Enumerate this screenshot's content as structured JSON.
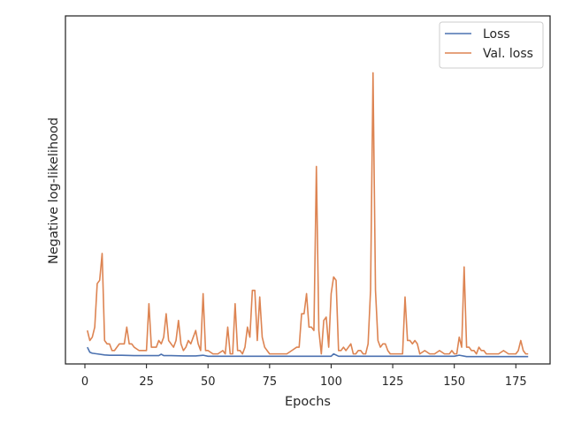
{
  "chart_data": {
    "type": "line",
    "title": "",
    "xlabel": "Epochs",
    "ylabel": "Negative log-likelihood",
    "xlim": [
      -7.9,
      188.9
    ],
    "ylim": [
      -0.02,
      1.02
    ],
    "x_ticks": [
      0,
      25,
      50,
      75,
      100,
      125,
      150,
      175
    ],
    "y_ticks_visible": false,
    "grid": false,
    "legend_position": "top-right",
    "series": [
      {
        "name": "Loss",
        "color": "#4c72b0",
        "x": [
          1,
          2,
          3,
          5,
          8,
          10,
          15,
          20,
          25,
          30,
          31,
          32,
          35,
          40,
          45,
          48,
          50,
          55,
          60,
          65,
          70,
          75,
          80,
          85,
          90,
          95,
          100,
          101,
          103,
          110,
          115,
          120,
          125,
          130,
          135,
          140,
          145,
          150,
          152,
          155,
          160,
          165,
          170,
          175,
          180
        ],
        "y": [
          0.03,
          0.015,
          0.012,
          0.01,
          0.007,
          0.006,
          0.006,
          0.005,
          0.005,
          0.005,
          0.009,
          0.005,
          0.005,
          0.004,
          0.004,
          0.006,
          0.003,
          0.003,
          0.003,
          0.003,
          0.003,
          0.003,
          0.003,
          0.003,
          0.003,
          0.003,
          0.003,
          0.01,
          0.003,
          0.003,
          0.003,
          0.003,
          0.003,
          0.003,
          0.003,
          0.003,
          0.003,
          0.003,
          0.006,
          0.002,
          0.002,
          0.002,
          0.002,
          0.002,
          0.002
        ]
      },
      {
        "name": "Val. loss",
        "color": "#dd8452",
        "x": [
          1,
          2,
          3,
          4,
          5,
          6,
          7,
          8,
          9,
          10,
          11,
          12,
          14,
          16,
          17,
          18,
          19,
          20,
          22,
          24,
          25,
          26,
          27,
          28,
          29,
          30,
          31,
          32,
          33,
          34,
          36,
          37,
          38,
          39,
          40,
          41,
          42,
          43,
          44,
          45,
          46,
          47,
          48,
          49,
          50,
          52,
          54,
          56,
          57,
          58,
          59,
          60,
          61,
          62,
          63,
          64,
          65,
          66,
          67,
          68,
          69,
          70,
          71,
          72,
          73,
          74,
          75,
          76,
          78,
          80,
          82,
          84,
          86,
          87,
          88,
          89,
          90,
          91,
          92,
          93,
          94,
          95,
          96,
          97,
          98,
          99,
          100,
          101,
          102,
          103,
          104,
          105,
          106,
          107,
          108,
          109,
          110,
          111,
          112,
          113,
          114,
          115,
          116,
          117,
          118,
          119,
          120,
          121,
          122,
          123,
          124,
          126,
          128,
          129,
          130,
          131,
          132,
          133,
          134,
          135,
          136,
          138,
          140,
          142,
          144,
          146,
          148,
          149,
          150,
          151,
          152,
          153,
          154,
          155,
          156,
          157,
          158,
          159,
          160,
          161,
          162,
          163,
          164,
          165,
          166,
          168,
          170,
          172,
          174,
          175,
          176,
          177,
          178,
          179,
          180
        ],
        "y": [
          0.08,
          0.05,
          0.06,
          0.09,
          0.22,
          0.23,
          0.31,
          0.05,
          0.04,
          0.04,
          0.02,
          0.02,
          0.04,
          0.04,
          0.09,
          0.04,
          0.04,
          0.03,
          0.02,
          0.02,
          0.02,
          0.16,
          0.03,
          0.03,
          0.03,
          0.05,
          0.04,
          0.06,
          0.13,
          0.05,
          0.03,
          0.05,
          0.11,
          0.04,
          0.02,
          0.03,
          0.05,
          0.04,
          0.06,
          0.08,
          0.04,
          0.02,
          0.19,
          0.02,
          0.02,
          0.01,
          0.01,
          0.02,
          0.01,
          0.09,
          0.01,
          0.01,
          0.16,
          0.02,
          0.02,
          0.01,
          0.03,
          0.09,
          0.06,
          0.2,
          0.2,
          0.05,
          0.18,
          0.06,
          0.03,
          0.02,
          0.01,
          0.01,
          0.01,
          0.01,
          0.01,
          0.02,
          0.03,
          0.03,
          0.13,
          0.13,
          0.19,
          0.09,
          0.09,
          0.08,
          0.57,
          0.08,
          0.01,
          0.11,
          0.12,
          0.03,
          0.19,
          0.24,
          0.23,
          0.02,
          0.02,
          0.03,
          0.02,
          0.03,
          0.04,
          0.01,
          0.01,
          0.02,
          0.02,
          0.01,
          0.01,
          0.04,
          0.2,
          0.85,
          0.2,
          0.05,
          0.03,
          0.04,
          0.04,
          0.02,
          0.01,
          0.01,
          0.01,
          0.01,
          0.18,
          0.05,
          0.05,
          0.04,
          0.05,
          0.04,
          0.01,
          0.02,
          0.01,
          0.01,
          0.02,
          0.01,
          0.01,
          0.02,
          0.01,
          0.01,
          0.06,
          0.03,
          0.27,
          0.03,
          0.03,
          0.02,
          0.02,
          0.01,
          0.03,
          0.02,
          0.02,
          0.01,
          0.01,
          0.01,
          0.01,
          0.01,
          0.02,
          0.01,
          0.01,
          0.01,
          0.02,
          0.05,
          0.02,
          0.01,
          0.01
        ]
      }
    ]
  }
}
